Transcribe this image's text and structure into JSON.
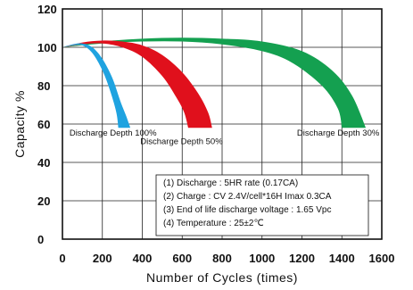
{
  "chart_data": {
    "type": "area",
    "xlabel": "Number of Cycles (times)",
    "ylabel": "Capacity %",
    "xlim": [
      0,
      1600
    ],
    "ylim": [
      0,
      120
    ],
    "x_ticks": [
      "0",
      "200",
      "400",
      "600",
      "800",
      "1000",
      "1200",
      "1400",
      "1600"
    ],
    "y_ticks": [
      "0",
      "20",
      "40",
      "60",
      "80",
      "100",
      "120"
    ],
    "grid": true,
    "series": [
      {
        "name": "Discharge Depth 100%",
        "color": "#1fa3e0",
        "upper": [
          [
            0,
            100
          ],
          [
            50,
            101.5
          ],
          [
            100,
            102
          ],
          [
            150,
            100
          ],
          [
            200,
            94
          ],
          [
            250,
            84
          ],
          [
            290,
            72
          ],
          [
            320,
            64
          ],
          [
            340,
            58
          ]
        ],
        "lower": [
          [
            0,
            100
          ],
          [
            50,
            101
          ],
          [
            100,
            101
          ],
          [
            150,
            97
          ],
          [
            200,
            88
          ],
          [
            240,
            77
          ],
          [
            270,
            66
          ],
          [
            280,
            58
          ]
        ]
      },
      {
        "name": "Discharge Depth 50%",
        "color": "#e0101c",
        "upper": [
          [
            0,
            100
          ],
          [
            100,
            102.5
          ],
          [
            200,
            103.5
          ],
          [
            300,
            103
          ],
          [
            400,
            101
          ],
          [
            500,
            96
          ],
          [
            600,
            87
          ],
          [
            680,
            76
          ],
          [
            730,
            66
          ],
          [
            750,
            58
          ]
        ],
        "lower": [
          [
            0,
            100
          ],
          [
            100,
            101.5
          ],
          [
            200,
            102
          ],
          [
            300,
            100
          ],
          [
            400,
            95
          ],
          [
            500,
            85
          ],
          [
            570,
            74
          ],
          [
            610,
            66
          ],
          [
            630,
            58
          ]
        ]
      },
      {
        "name": "Discharge Depth 30%",
        "color": "#14a050",
        "upper": [
          [
            0,
            100
          ],
          [
            200,
            103
          ],
          [
            400,
            104.5
          ],
          [
            600,
            105
          ],
          [
            800,
            104.5
          ],
          [
            1000,
            103
          ],
          [
            1200,
            98
          ],
          [
            1350,
            88
          ],
          [
            1450,
            75
          ],
          [
            1520,
            58
          ]
        ],
        "lower": [
          [
            0,
            100
          ],
          [
            200,
            102
          ],
          [
            400,
            103
          ],
          [
            600,
            103
          ],
          [
            800,
            101.5
          ],
          [
            1000,
            98
          ],
          [
            1150,
            92
          ],
          [
            1300,
            80
          ],
          [
            1380,
            68
          ],
          [
            1400,
            58
          ]
        ]
      }
    ],
    "band_labels": [
      {
        "text": "Discharge Depth 100%",
        "x": 35,
        "y": 54
      },
      {
        "text": "Discharge Depth 50%",
        "x": 390,
        "y": 49.5
      },
      {
        "text": "Discharge Depth 30%",
        "x": 1175,
        "y": 54
      }
    ],
    "notes": [
      "(1) Discharge : 5HR rate (0.17CA)",
      "(2) Charge : CV 2.4V/cell*16H Imax 0.3CA",
      "(3) End of life discharge voltage : 1.65 Vpc",
      "(4) Temperature : 25±2℃"
    ]
  }
}
